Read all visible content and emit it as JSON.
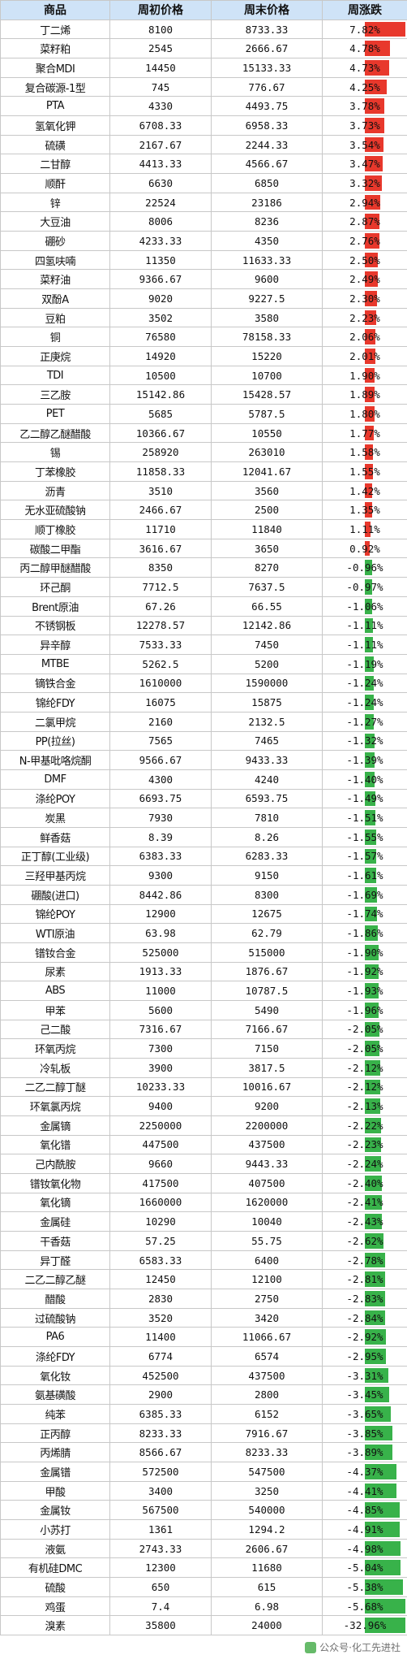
{
  "headers": [
    "商品",
    "周初价格",
    "周末价格",
    "周涨跌"
  ],
  "rows": [
    [
      "丁二烯",
      "8100",
      "8733.33",
      "7.82%"
    ],
    [
      "菜籽粕",
      "2545",
      "2666.67",
      "4.78%"
    ],
    [
      "聚合MDI",
      "14450",
      "15133.33",
      "4.73%"
    ],
    [
      "复合碳源-1型",
      "745",
      "776.67",
      "4.25%"
    ],
    [
      "PTA",
      "4330",
      "4493.75",
      "3.78%"
    ],
    [
      "氢氧化钾",
      "6708.33",
      "6958.33",
      "3.73%"
    ],
    [
      "硫磺",
      "2167.67",
      "2244.33",
      "3.54%"
    ],
    [
      "二甘醇",
      "4413.33",
      "4566.67",
      "3.47%"
    ],
    [
      "顺酐",
      "6630",
      "6850",
      "3.32%"
    ],
    [
      "锌",
      "22524",
      "23186",
      "2.94%"
    ],
    [
      "大豆油",
      "8006",
      "8236",
      "2.87%"
    ],
    [
      "硼砂",
      "4233.33",
      "4350",
      "2.76%"
    ],
    [
      "四氢呋喃",
      "11350",
      "11633.33",
      "2.50%"
    ],
    [
      "菜籽油",
      "9366.67",
      "9600",
      "2.49%"
    ],
    [
      "双酚A",
      "9020",
      "9227.5",
      "2.30%"
    ],
    [
      "豆粕",
      "3502",
      "3580",
      "2.23%"
    ],
    [
      "铜",
      "76580",
      "78158.33",
      "2.06%"
    ],
    [
      "正庚烷",
      "14920",
      "15220",
      "2.01%"
    ],
    [
      "TDI",
      "10500",
      "10700",
      "1.90%"
    ],
    [
      "三乙胺",
      "15142.86",
      "15428.57",
      "1.89%"
    ],
    [
      "PET",
      "5685",
      "5787.5",
      "1.80%"
    ],
    [
      "乙二醇乙醚醋酸",
      "10366.67",
      "10550",
      "1.77%"
    ],
    [
      "锡",
      "258920",
      "263010",
      "1.58%"
    ],
    [
      "丁苯橡胶",
      "11858.33",
      "12041.67",
      "1.55%"
    ],
    [
      "沥青",
      "3510",
      "3560",
      "1.42%"
    ],
    [
      "无水亚硫酸钠",
      "2466.67",
      "2500",
      "1.35%"
    ],
    [
      "顺丁橡胶",
      "11710",
      "11840",
      "1.11%"
    ],
    [
      "碳酸二甲酯",
      "3616.67",
      "3650",
      "0.92%"
    ],
    [
      "丙二醇甲醚醋酸",
      "8350",
      "8270",
      "-0.96%"
    ],
    [
      "环己酮",
      "7712.5",
      "7637.5",
      "-0.97%"
    ],
    [
      "Brent原油",
      "67.26",
      "66.55",
      "-1.06%"
    ],
    [
      "不锈钢板",
      "12278.57",
      "12142.86",
      "-1.11%"
    ],
    [
      "异辛醇",
      "7533.33",
      "7450",
      "-1.11%"
    ],
    [
      "MTBE",
      "5262.5",
      "5200",
      "-1.19%"
    ],
    [
      "镝铁合金",
      "1610000",
      "1590000",
      "-1.24%"
    ],
    [
      "锦纶FDY",
      "16075",
      "15875",
      "-1.24%"
    ],
    [
      "二氯甲烷",
      "2160",
      "2132.5",
      "-1.27%"
    ],
    [
      "PP(拉丝)",
      "7565",
      "7465",
      "-1.32%"
    ],
    [
      "N-甲基吡咯烷酮",
      "9566.67",
      "9433.33",
      "-1.39%"
    ],
    [
      "DMF",
      "4300",
      "4240",
      "-1.40%"
    ],
    [
      "涤纶POY",
      "6693.75",
      "6593.75",
      "-1.49%"
    ],
    [
      "炭黑",
      "7930",
      "7810",
      "-1.51%"
    ],
    [
      "鲜香菇",
      "8.39",
      "8.26",
      "-1.55%"
    ],
    [
      "正丁醇(工业级)",
      "6383.33",
      "6283.33",
      "-1.57%"
    ],
    [
      "三羟甲基丙烷",
      "9300",
      "9150",
      "-1.61%"
    ],
    [
      "硼酸(进口)",
      "8442.86",
      "8300",
      "-1.69%"
    ],
    [
      "锦纶POY",
      "12900",
      "12675",
      "-1.74%"
    ],
    [
      "WTI原油",
      "63.98",
      "62.79",
      "-1.86%"
    ],
    [
      "镨钕合金",
      "525000",
      "515000",
      "-1.90%"
    ],
    [
      "尿素",
      "1913.33",
      "1876.67",
      "-1.92%"
    ],
    [
      "ABS",
      "11000",
      "10787.5",
      "-1.93%"
    ],
    [
      "甲苯",
      "5600",
      "5490",
      "-1.96%"
    ],
    [
      "己二酸",
      "7316.67",
      "7166.67",
      "-2.05%"
    ],
    [
      "环氧丙烷",
      "7300",
      "7150",
      "-2.05%"
    ],
    [
      "冷轧板",
      "3900",
      "3817.5",
      "-2.12%"
    ],
    [
      "二乙二醇丁醚",
      "10233.33",
      "10016.67",
      "-2.12%"
    ],
    [
      "环氧氯丙烷",
      "9400",
      "9200",
      "-2.13%"
    ],
    [
      "金属镝",
      "2250000",
      "2200000",
      "-2.22%"
    ],
    [
      "氧化镨",
      "447500",
      "437500",
      "-2.23%"
    ],
    [
      "己内酰胺",
      "9660",
      "9443.33",
      "-2.24%"
    ],
    [
      "镨钕氧化物",
      "417500",
      "407500",
      "-2.40%"
    ],
    [
      "氧化镝",
      "1660000",
      "1620000",
      "-2.41%"
    ],
    [
      "金属硅",
      "10290",
      "10040",
      "-2.43%"
    ],
    [
      "干香菇",
      "57.25",
      "55.75",
      "-2.62%"
    ],
    [
      "异丁醛",
      "6583.33",
      "6400",
      "-2.78%"
    ],
    [
      "二乙二醇乙醚",
      "12450",
      "12100",
      "-2.81%"
    ],
    [
      "醋酸",
      "2830",
      "2750",
      "-2.83%"
    ],
    [
      "过硫酸钠",
      "3520",
      "3420",
      "-2.84%"
    ],
    [
      "PA6",
      "11400",
      "11066.67",
      "-2.92%"
    ],
    [
      "涤纶FDY",
      "6774",
      "6574",
      "-2.95%"
    ],
    [
      "氧化钕",
      "452500",
      "437500",
      "-3.31%"
    ],
    [
      "氨基磺酸",
      "2900",
      "2800",
      "-3.45%"
    ],
    [
      "纯苯",
      "6385.33",
      "6152",
      "-3.65%"
    ],
    [
      "正丙醇",
      "8233.33",
      "7916.67",
      "-3.85%"
    ],
    [
      "丙烯腈",
      "8566.67",
      "8233.33",
      "-3.89%"
    ],
    [
      "金属镨",
      "572500",
      "547500",
      "-4.37%"
    ],
    [
      "甲酸",
      "3400",
      "3250",
      "-4.41%"
    ],
    [
      "金属钕",
      "567500",
      "540000",
      "-4.85%"
    ],
    [
      "小苏打",
      "1361",
      "1294.2",
      "-4.91%"
    ],
    [
      "液氨",
      "2743.33",
      "2606.67",
      "-4.98%"
    ],
    [
      "有机硅DMC",
      "12300",
      "11680",
      "-5.04%"
    ],
    [
      "硫酸",
      "650",
      "615",
      "-5.38%"
    ],
    [
      "鸡蛋",
      "7.4",
      "6.98",
      "-5.68%"
    ],
    [
      "溴素",
      "35800",
      "24000",
      "-32.96%"
    ]
  ],
  "colors": {
    "header_bg": "#cfe3f7",
    "up": "#e8382c",
    "down": "#38b24a"
  },
  "watermark": {
    "text": "公众号·化工先进社",
    "icon": "wechat-icon"
  }
}
